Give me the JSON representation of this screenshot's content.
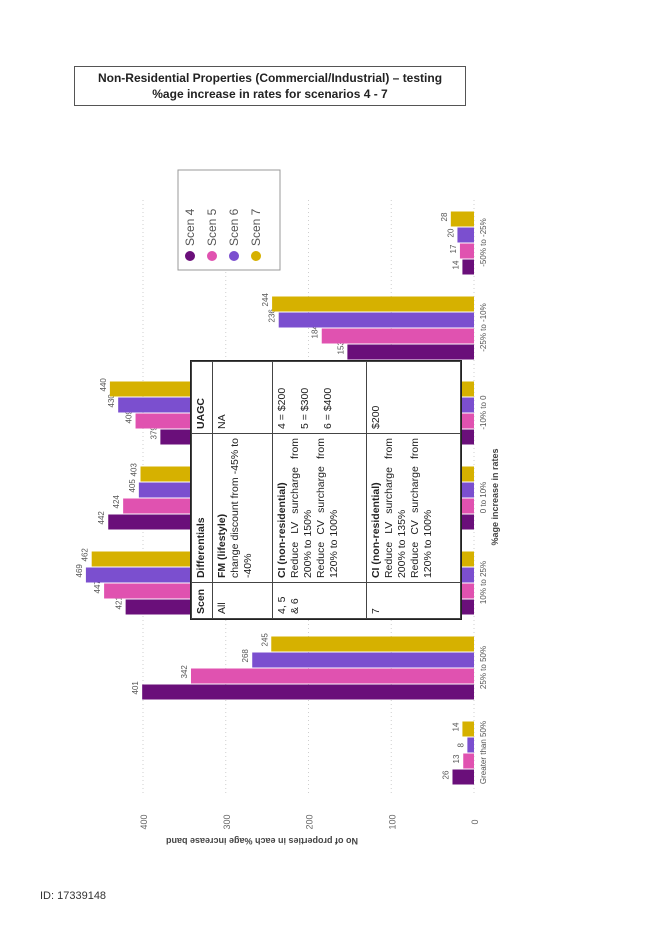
{
  "header": {
    "title_line1": "Non-Residential Properties (Commercial/Industrial) – testing",
    "title_line2": "%age increase in rates for scenarios 4 - 7"
  },
  "footer": {
    "id_text": "ID: 17339148"
  },
  "table": {
    "headers": [
      "Scen",
      "Differentials",
      "UAGC"
    ],
    "rows": [
      {
        "scen": "All",
        "diff_title": "FM (lifestyle)",
        "diff_lines": [
          "change discount from -45% to -40%"
        ],
        "uagc": [
          "NA"
        ]
      },
      {
        "scen": "4, 5 & 6",
        "diff_title": "CI (non-residential)",
        "diff_lines": [
          "Reduce LV surcharge from 200% to 150%",
          "Reduce CV surcharge from 120% to 100%"
        ],
        "uagc": [
          "4 = $200",
          "5 = $300",
          "6 = $400"
        ]
      },
      {
        "scen": "7",
        "diff_title": "CI (non-residential)",
        "diff_lines": [
          "Reduce LV surcharge from 200% to 135%",
          "Reduce CV surcharge from 120% to 100%"
        ],
        "uagc": [
          "$200"
        ]
      }
    ]
  },
  "chart_data": {
    "type": "bar",
    "orientation": "rotated-90",
    "categories": [
      "-50% to -25%",
      "-25% to -10%",
      "-10% to 0",
      "0 to 10%",
      "10% to 25%",
      "25% to 50%",
      "Greater than 50%"
    ],
    "series": [
      {
        "name": "Scen 4",
        "color": "#6a0f7a",
        "values": [
          14,
          153,
          379,
          442,
          421,
          401,
          26
        ]
      },
      {
        "name": "Scen 5",
        "color": "#e052b0",
        "values": [
          17,
          184,
          409,
          424,
          447,
          342,
          13
        ]
      },
      {
        "name": "Scen 6",
        "color": "#7b4fcf",
        "values": [
          20,
          236,
          430,
          405,
          469,
          268,
          8
        ]
      },
      {
        "name": "Scen 7",
        "color": "#d6b100",
        "values": [
          28,
          244,
          440,
          403,
          462,
          245,
          14
        ]
      }
    ],
    "xlabel": "%age increase in rates",
    "ylabel": "No of properties in each %age increase band",
    "ylim": [
      0,
      470
    ],
    "yticks": [
      0,
      100,
      200,
      300,
      400
    ],
    "grid": true,
    "legend_position": "top-right"
  }
}
